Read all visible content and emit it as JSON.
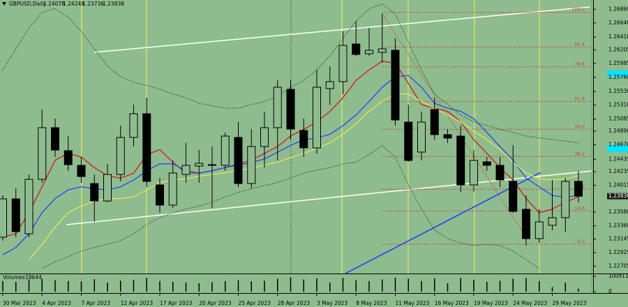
{
  "chart_data": {
    "type": "candlestick",
    "title": "GBPUSD,Daily",
    "categories": [
      "30 Mar 2023",
      null,
      null,
      "4 Apr 2023",
      null,
      null,
      "7 Apr 2023",
      null,
      null,
      "12 Apr 2023",
      null,
      null,
      "17 Apr 2023",
      null,
      null,
      "20 Apr 2023",
      null,
      null,
      "25 Apr 2023",
      null,
      null,
      "28 Apr 2023",
      null,
      null,
      "3 May 2023",
      null,
      null,
      "8 May 2023",
      null,
      null,
      "11 May 2023",
      null,
      null,
      "16 May 2023",
      null,
      null,
      "19 May 2023",
      null,
      null,
      "24 May 2023",
      null,
      null,
      "29 May 2023",
      null,
      null
    ],
    "open": [
      1.23175,
      1.23795,
      1.23231,
      1.24111,
      1.24946,
      1.24574,
      1.24337,
      1.24043,
      1.23761,
      1.2419,
      1.24788,
      1.25171,
      1.24021,
      1.23694,
      1.2419,
      1.24325,
      1.24337,
      1.24337,
      1.24788,
      1.24043,
      1.24641,
      1.24946,
      1.25566,
      1.24901,
      1.24619,
      1.25577,
      1.2569,
      1.26299,
      1.26141,
      1.26164,
      1.26198,
      1.25036,
      1.24551,
      1.25239,
      1.24833,
      1.2481,
      1.24021,
      1.24393,
      1.24337,
      1.24077,
      1.23626,
      1.23152,
      1.23367,
      1.23491,
      1.24078
    ],
    "high": [
      1.23852,
      1.23964,
      1.2419,
      1.25239,
      1.25092,
      1.2481,
      1.24472,
      1.2419,
      1.24359,
      1.2498,
      1.25318,
      1.25431,
      1.24134,
      1.24416,
      1.24698,
      1.24585,
      1.24641,
      1.24867,
      1.25036,
      1.24923,
      1.25205,
      1.25713,
      1.25713,
      1.25092,
      1.25882,
      1.25938,
      1.26502,
      1.26672,
      1.26559,
      1.26784,
      1.2639,
      1.25318,
      1.25205,
      1.25431,
      1.24923,
      1.2498,
      1.24585,
      1.24472,
      1.24472,
      1.24664,
      1.23852,
      1.23626,
      1.241,
      1.24134,
      1.24248
    ],
    "low": [
      1.23118,
      1.23175,
      1.23175,
      1.24055,
      1.24472,
      1.24246,
      1.24055,
      1.23423,
      1.23739,
      1.24077,
      1.24641,
      1.23987,
      1.2357,
      1.23649,
      1.24055,
      1.24055,
      1.23649,
      1.24246,
      1.23987,
      1.23964,
      1.24303,
      1.24416,
      1.24754,
      1.24472,
      1.24528,
      1.25318,
      1.25487,
      1.26108,
      1.26108,
      1.25995,
      1.2498,
      1.24393,
      1.24416,
      1.24754,
      1.24698,
      1.23908,
      1.23908,
      1.24246,
      1.23987,
      1.2357,
      1.23039,
      1.23085,
      1.23288,
      1.23254,
      1.23736
    ],
    "close": [
      1.23795,
      1.23265,
      1.24111,
      1.24946,
      1.24585,
      1.24348,
      1.24156,
      1.23761,
      1.2419,
      1.24788,
      1.25171,
      1.24077,
      1.23694,
      1.24213,
      1.24337,
      1.2437,
      1.24348,
      1.2481,
      1.24043,
      1.24641,
      1.24946,
      1.256,
      1.24923,
      1.24619,
      1.256,
      1.2569,
      1.26277,
      1.2613,
      1.26198,
      1.2622,
      1.2507,
      1.24416,
      1.25036,
      1.24833,
      1.24777,
      1.24021,
      1.24416,
      1.24337,
      1.241,
      1.23592,
      1.23152,
      1.23423,
      1.23491,
      1.24077,
      1.23838
    ],
    "up_color": "#8fbc8f",
    "down_color": "#000000",
    "ylim": [
      1.22588,
      1.2701
    ],
    "yticks": [
      {
        "value": 1.2686,
        "label": "1.26860"
      },
      {
        "value": 1.2664,
        "label": "1.26640"
      },
      {
        "value": 1.2641,
        "label": "1.26410"
      },
      1.26205,
      1.25985,
      {
        "value": 1.2576,
        "label": "1.25760"
      },
      {
        "value": 1.2553,
        "label": "1.25530"
      },
      {
        "value": 1.2531,
        "label": "1.25310"
      },
      1.25085,
      {
        "value": 1.2489,
        "label": "1.24890"
      },
      {
        "value": 1.2467,
        "label": "1.24670"
      },
      1.24435,
      1.24235,
      1.24015,
      {
        "value": 1.2358,
        "label": "1.23580"
      },
      {
        "value": 1.2336,
        "label": "1.23360"
      },
      1.23145,
      1.22925,
      1.22705
    ],
    "overlays": [
      {
        "color": "#d01010",
        "style": "solid",
        "values": [
          1.2318,
          1.2323,
          1.2357,
          1.2399,
          1.2442,
          1.2453,
          1.2447,
          1.243,
          1.2417,
          1.2413,
          1.2421,
          1.2451,
          1.2459,
          1.2439,
          1.2421,
          1.2421,
          1.2425,
          1.243,
          1.2436,
          1.2442,
          1.2453,
          1.2464,
          1.2481,
          1.2492,
          1.2504,
          1.2521,
          1.2543,
          1.2571,
          1.2588,
          1.2602,
          1.2599,
          1.2566,
          1.2532,
          1.2526,
          1.2521,
          1.2504,
          1.2475,
          1.2453,
          1.243,
          1.241,
          1.238,
          1.2357,
          1.2363,
          1.2374,
          1.2383
        ]
      },
      {
        "color": "#1a3cff",
        "style": "solid",
        "values": [
          1.2289,
          1.2301,
          1.2323,
          1.2357,
          1.238,
          1.2394,
          1.2399,
          1.2396,
          1.2394,
          1.2399,
          1.241,
          1.2425,
          1.2436,
          1.2436,
          1.2425,
          1.2421,
          1.2425,
          1.243,
          1.2434,
          1.2438,
          1.2444,
          1.2455,
          1.2466,
          1.2475,
          1.2478,
          1.2484,
          1.2498,
          1.2515,
          1.2537,
          1.256,
          1.2577,
          1.2579,
          1.256,
          1.2534,
          1.2526,
          1.2521,
          1.2509,
          1.2487,
          1.2464,
          1.2442,
          1.2413,
          1.2399,
          1.2385,
          1.2382,
          1.2385
        ]
      },
      {
        "color": "#e8e85a",
        "style": "solid",
        "values": [
          null,
          null,
          1.2281,
          1.2306,
          1.2334,
          1.2357,
          1.2368,
          1.2376,
          1.238,
          1.238,
          1.2383,
          1.2394,
          1.2406,
          1.241,
          1.2412,
          1.2416,
          1.2419,
          1.2422,
          1.2425,
          1.2429,
          1.2434,
          1.2439,
          1.2446,
          1.2453,
          1.2461,
          1.247,
          1.2484,
          1.2501,
          1.2521,
          1.2537,
          1.2549,
          1.2549,
          1.2537,
          1.2526,
          1.2515,
          1.2504,
          1.2489,
          1.2475,
          1.2459,
          1.2439,
          1.2421,
          1.2412,
          1.241,
          1.2412,
          1.2417
        ]
      },
      {
        "color": "#1a3a1a",
        "style": "dotted",
        "values": [
          1.2588,
          1.2622,
          1.2656,
          1.2681,
          1.2687,
          1.2673,
          1.265,
          1.2622,
          1.2594,
          1.2577,
          1.2568,
          1.2563,
          1.2557,
          1.2549,
          1.2543,
          1.2534,
          1.253,
          1.2526,
          1.2526,
          1.2532,
          1.2537,
          1.2545,
          1.256,
          1.2571,
          1.2588,
          1.2611,
          1.2639,
          1.2667,
          1.2687,
          1.2695,
          1.2678,
          1.2633,
          1.2588,
          1.2549,
          1.2532,
          1.2515,
          1.2504,
          1.2498,
          1.2492,
          1.2487,
          1.2481,
          1.2478,
          1.2475,
          1.2473,
          1.247
        ]
      },
      {
        "color": "#1a3a1a",
        "style": "dotted",
        "values": [
          null,
          null,
          null,
          1.2267,
          1.2278,
          1.2286,
          1.2295,
          1.2301,
          1.2306,
          1.2312,
          1.2323,
          1.2338,
          1.2349,
          1.2357,
          1.2363,
          1.2368,
          1.2374,
          1.2383,
          1.239,
          1.2396,
          1.2401,
          1.2406,
          1.2413,
          1.2421,
          1.2426,
          1.243,
          1.2436,
          1.2439,
          1.2451,
          1.2466,
          1.2447,
          1.2402,
          1.2363,
          1.2329,
          1.2315,
          1.2308,
          1.2304,
          1.2306,
          1.2304,
          1.2295,
          1.2281,
          1.2267,
          null,
          null,
          null
        ]
      }
    ],
    "fibonacci": {
      "color": "#c83c3c",
      "levels": [
        {
          "value": 1.2681,
          "label": "100.0"
        },
        {
          "value": 1.2625,
          "label": "85.4"
        },
        {
          "value": 1.2593,
          "label": "76.4"
        },
        {
          "value": 1.2537,
          "label": "61.8"
        },
        {
          "value": 1.2492,
          "label": "50.0"
        },
        {
          "value": 1.2448,
          "label": "38.2"
        },
        {
          "value": 1.2395,
          "label": "23.6"
        },
        {
          "value": 1.236,
          "label": "14.6"
        },
        {
          "value": 1.2306,
          "label": "0.0"
        }
      ]
    },
    "volume": {
      "title": "Volumes",
      "values": [
        70000,
        65000,
        80000,
        85000,
        75000,
        70000,
        68000,
        82000,
        60000,
        72000,
        78000,
        90000,
        70000,
        65000,
        60000,
        55000,
        62000,
        70000,
        75000,
        68000,
        72000,
        85000,
        95000,
        80000,
        88000,
        60000,
        90000,
        75000,
        70000,
        80000,
        92000,
        85000,
        70000,
        88000,
        55000,
        90000,
        78000,
        65000,
        72000,
        85000,
        90000,
        70000,
        30000,
        60000,
        19644
      ],
      "ylim": [
        0,
        100911
      ],
      "yticks": [
        100911,
        0
      ]
    }
  }
}
